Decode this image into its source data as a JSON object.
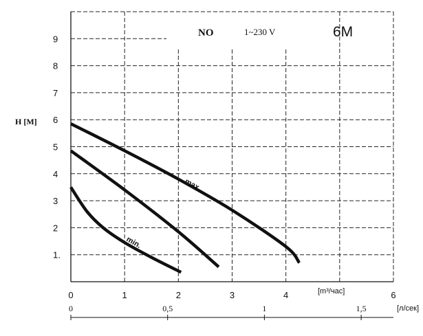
{
  "chart_data": {
    "type": "line",
    "header": {
      "model": "NO",
      "voltage": "1~230 V",
      "speed": "6M"
    },
    "ylabel": "H [M]",
    "xlabel": "[m³/час]",
    "x2label": "[л/сек]",
    "xlim": [
      0,
      6
    ],
    "ylim": [
      0,
      10
    ],
    "x_ticks": [
      "0",
      "1",
      "2",
      "3",
      "4",
      "6"
    ],
    "y_ticks": [
      "1.",
      "2",
      "3",
      "4",
      "5",
      "6",
      "7",
      "8",
      "9"
    ],
    "x2_ticks": [
      {
        "label": "0",
        "value": 0
      },
      {
        "label": "0,5",
        "value": 0.5
      },
      {
        "label": "1",
        "value": 1
      },
      {
        "label": "1,5",
        "value": 1.5
      }
    ],
    "series": [
      {
        "name": "max.",
        "points": [
          [
            0,
            5.85
          ],
          [
            1,
            4.85
          ],
          [
            2,
            3.8
          ],
          [
            3,
            2.65
          ],
          [
            4,
            1.3
          ],
          [
            4.25,
            0.7
          ]
        ]
      },
      {
        "name": "",
        "points": [
          [
            0,
            4.85
          ],
          [
            1,
            3.4
          ],
          [
            2,
            1.85
          ],
          [
            2.75,
            0.55
          ]
        ]
      },
      {
        "name": "min.",
        "points": [
          [
            0,
            3.5
          ],
          [
            0.3,
            2.6
          ],
          [
            0.6,
            2.0
          ],
          [
            1,
            1.45
          ],
          [
            1.5,
            0.9
          ],
          [
            2.05,
            0.35
          ]
        ]
      }
    ],
    "grid": true
  }
}
